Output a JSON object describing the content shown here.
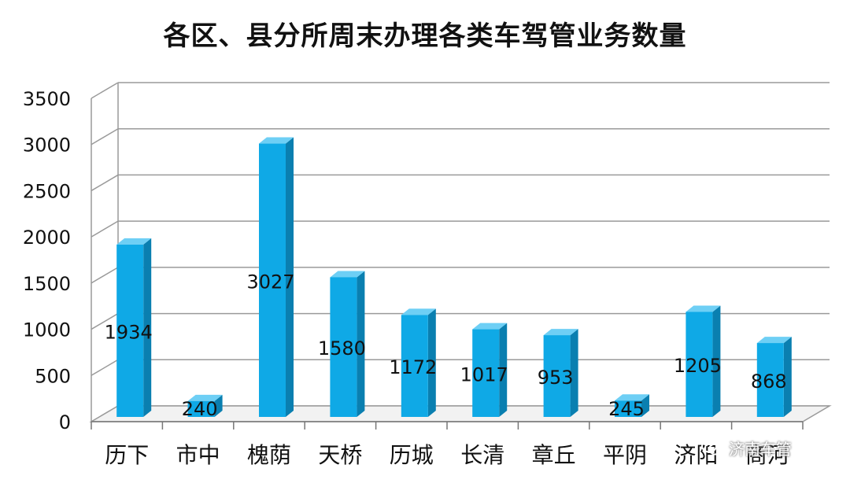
{
  "chart_data": {
    "type": "bar",
    "title": "各区、县分所周末办理各类车驾管业务数量",
    "categories": [
      "历下",
      "市中",
      "槐荫",
      "天桥",
      "历城",
      "长清",
      "章丘",
      "平阴",
      "济阳",
      "商河"
    ],
    "values": [
      1934,
      240,
      3027,
      1580,
      1172,
      1017,
      953,
      245,
      1205,
      868
    ],
    "ylim": [
      0,
      3500
    ],
    "yticks": [
      0,
      500,
      1000,
      1500,
      2000,
      2500,
      3000,
      3500
    ],
    "grid": true,
    "style": "3d-column",
    "colors": {
      "bar_front": "#0fa9e6",
      "bar_side": "#0a7fb0",
      "bar_top": "#6ecff5",
      "grid": "#9a9a9a"
    }
  },
  "watermark": {
    "text": "济南车管",
    "icon": "wechat-icon"
  }
}
